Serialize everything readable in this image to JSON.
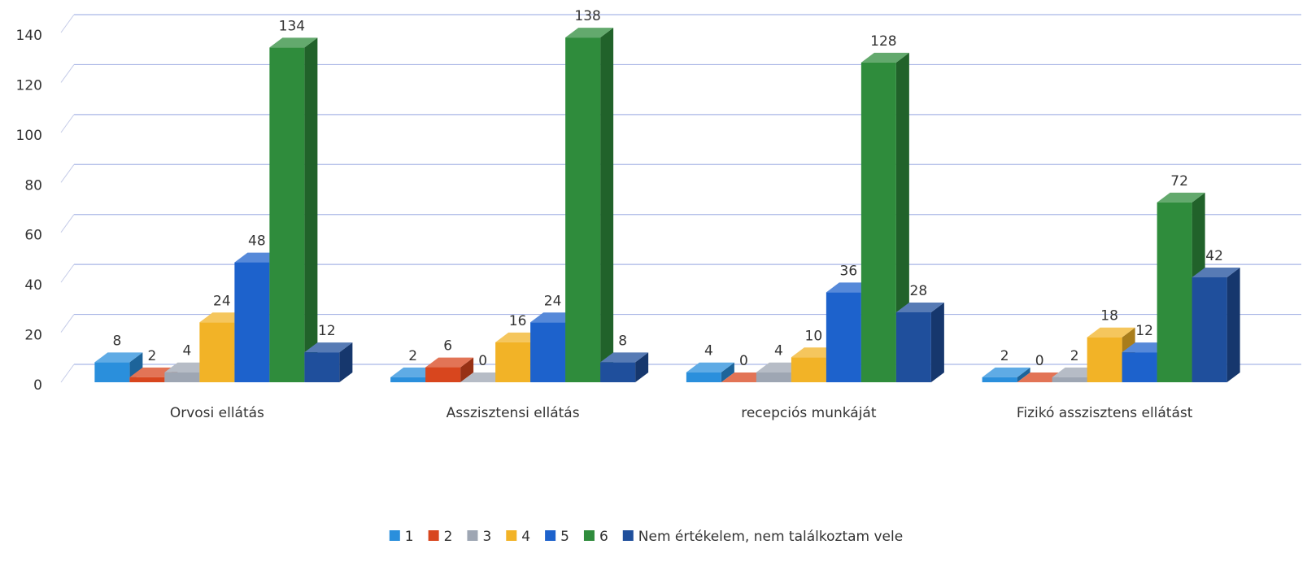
{
  "chart_data": {
    "type": "bar3d",
    "categories": [
      "Orvosi ellátás",
      "Asszisztensi ellátás",
      "recepciós munkáját",
      "Fizikó asszisztens ellátást"
    ],
    "series": [
      {
        "name": "1",
        "color": "#2a8fdc",
        "values": [
          8,
          2,
          4,
          2
        ]
      },
      {
        "name": "2",
        "color": "#d8461e",
        "values": [
          2,
          6,
          0,
          0
        ]
      },
      {
        "name": "3",
        "color": "#9ea6b3",
        "values": [
          4,
          0,
          4,
          2
        ]
      },
      {
        "name": "4",
        "color": "#f2b327",
        "values": [
          24,
          16,
          10,
          18
        ]
      },
      {
        "name": "5",
        "color": "#1d62cc",
        "values": [
          48,
          24,
          36,
          12
        ]
      },
      {
        "name": "6",
        "color": "#2f8c3c",
        "values": [
          134,
          138,
          128,
          72
        ]
      },
      {
        "name": "Nem értékelem, nem találkoztam vele",
        "color": "#1f4f9c",
        "values": [
          12,
          8,
          28,
          42
        ]
      }
    ],
    "ylim": [
      0,
      140
    ],
    "yticks": [
      0,
      20,
      40,
      60,
      80,
      100,
      120,
      140
    ],
    "grid": true,
    "legend": "bottom"
  }
}
